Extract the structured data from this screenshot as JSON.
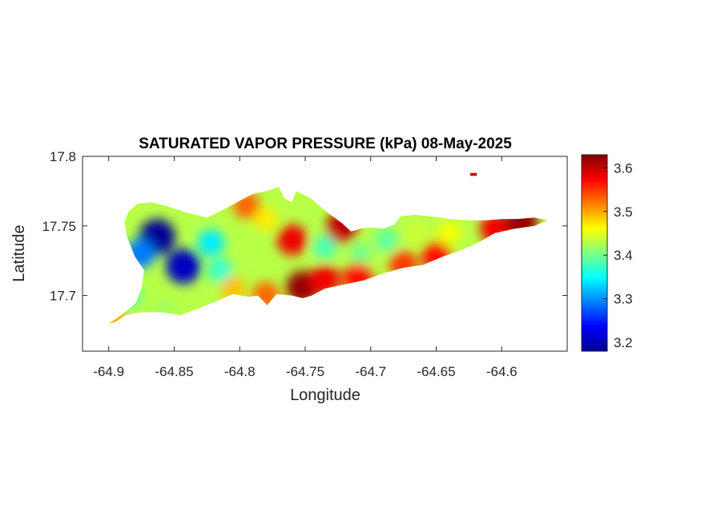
{
  "chart_data": {
    "type": "heatmap",
    "title": "SATURATED VAPOR PRESSURE (kPa) 08-May-2025",
    "xlabel": "Longitude",
    "ylabel": "Latitude",
    "xlim": [
      -64.92,
      -64.55
    ],
    "ylim": [
      17.66,
      17.8
    ],
    "x_ticks": [
      -64.9,
      -64.85,
      -64.8,
      -64.75,
      -64.7,
      -64.65,
      -64.6
    ],
    "x_tick_labels": [
      "-64.9",
      "-64.85",
      "-64.8",
      "-64.75",
      "-64.7",
      "-64.65",
      "-64.6"
    ],
    "y_ticks": [
      17.7,
      17.75,
      17.8
    ],
    "y_tick_labels": [
      "17.7",
      "17.75",
      "17.8"
    ],
    "colorbar": {
      "colormap": "jet",
      "range": [
        3.18,
        3.63
      ],
      "ticks": [
        3.2,
        3.3,
        3.4,
        3.5,
        3.6
      ],
      "tick_labels": [
        "3.2",
        "3.3",
        "3.4",
        "3.5",
        "3.6"
      ]
    },
    "island_outline": [
      [
        -64.9,
        17.68
      ],
      [
        -64.893,
        17.684
      ],
      [
        -64.885,
        17.69
      ],
      [
        -64.879,
        17.695
      ],
      [
        -64.875,
        17.705
      ],
      [
        -64.873,
        17.718
      ],
      [
        -64.88,
        17.728
      ],
      [
        -64.886,
        17.742
      ],
      [
        -64.888,
        17.753
      ],
      [
        -64.885,
        17.76
      ],
      [
        -64.878,
        17.766
      ],
      [
        -64.867,
        17.767
      ],
      [
        -64.855,
        17.764
      ],
      [
        -64.842,
        17.76
      ],
      [
        -64.825,
        17.756
      ],
      [
        -64.812,
        17.762
      ],
      [
        -64.8,
        17.768
      ],
      [
        -64.79,
        17.773
      ],
      [
        -64.78,
        17.775
      ],
      [
        -64.77,
        17.778
      ],
      [
        -64.766,
        17.77
      ],
      [
        -64.76,
        17.767
      ],
      [
        -64.757,
        17.775
      ],
      [
        -64.752,
        17.773
      ],
      [
        -64.746,
        17.77
      ],
      [
        -64.74,
        17.765
      ],
      [
        -64.732,
        17.759
      ],
      [
        -64.722,
        17.752
      ],
      [
        -64.715,
        17.746
      ],
      [
        -64.708,
        17.748
      ],
      [
        -64.7,
        17.749
      ],
      [
        -64.69,
        17.748
      ],
      [
        -64.682,
        17.751
      ],
      [
        -64.677,
        17.757
      ],
      [
        -64.666,
        17.758
      ],
      [
        -64.655,
        17.757
      ],
      [
        -64.64,
        17.755
      ],
      [
        -64.625,
        17.754
      ],
      [
        -64.612,
        17.754
      ],
      [
        -64.6,
        17.755
      ],
      [
        -64.588,
        17.755
      ],
      [
        -64.575,
        17.756
      ],
      [
        -64.565,
        17.754
      ],
      [
        -64.575,
        17.75
      ],
      [
        -64.59,
        17.748
      ],
      [
        -64.605,
        17.745
      ],
      [
        -64.618,
        17.738
      ],
      [
        -64.63,
        17.733
      ],
      [
        -64.645,
        17.728
      ],
      [
        -64.66,
        17.722
      ],
      [
        -64.675,
        17.72
      ],
      [
        -64.69,
        17.716
      ],
      [
        -64.705,
        17.711
      ],
      [
        -64.72,
        17.708
      ],
      [
        -64.735,
        17.705
      ],
      [
        -64.745,
        17.7
      ],
      [
        -64.752,
        17.698
      ],
      [
        -64.76,
        17.7
      ],
      [
        -64.772,
        17.701
      ],
      [
        -64.779,
        17.693
      ],
      [
        -64.786,
        17.7
      ],
      [
        -64.793,
        17.699
      ],
      [
        -64.805,
        17.701
      ],
      [
        -64.815,
        17.697
      ],
      [
        -64.828,
        17.692
      ],
      [
        -64.845,
        17.686
      ],
      [
        -64.86,
        17.688
      ],
      [
        -64.875,
        17.688
      ],
      [
        -64.887,
        17.686
      ],
      [
        -64.895,
        17.681
      ]
    ],
    "islet": [
      [
        -64.624,
        17.788
      ],
      [
        -64.619,
        17.788
      ],
      [
        -64.619,
        17.786
      ],
      [
        -64.624,
        17.786
      ]
    ],
    "field_centers": [
      {
        "lon": -64.863,
        "lat": 17.742,
        "value": 3.19
      },
      {
        "lon": -64.843,
        "lat": 17.721,
        "value": 3.21
      },
      {
        "lon": -64.876,
        "lat": 17.73,
        "value": 3.29
      },
      {
        "lon": -64.822,
        "lat": 17.738,
        "value": 3.34
      },
      {
        "lon": -64.815,
        "lat": 17.718,
        "value": 3.37
      },
      {
        "lon": -64.885,
        "lat": 17.7,
        "value": 3.38
      },
      {
        "lon": -64.735,
        "lat": 17.735,
        "value": 3.38
      },
      {
        "lon": -64.708,
        "lat": 17.73,
        "value": 3.4
      },
      {
        "lon": -64.688,
        "lat": 17.74,
        "value": 3.39
      },
      {
        "lon": -64.665,
        "lat": 17.745,
        "value": 3.44
      },
      {
        "lon": -64.64,
        "lat": 17.745,
        "value": 3.46
      },
      {
        "lon": -64.78,
        "lat": 17.755,
        "value": 3.47
      },
      {
        "lon": -64.795,
        "lat": 17.765,
        "value": 3.53
      },
      {
        "lon": -64.76,
        "lat": 17.74,
        "value": 3.58
      },
      {
        "lon": -64.722,
        "lat": 17.749,
        "value": 3.6
      },
      {
        "lon": -64.752,
        "lat": 17.706,
        "value": 3.62
      },
      {
        "lon": -64.735,
        "lat": 17.711,
        "value": 3.58
      },
      {
        "lon": -64.71,
        "lat": 17.713,
        "value": 3.57
      },
      {
        "lon": -64.78,
        "lat": 17.7,
        "value": 3.53
      },
      {
        "lon": -64.675,
        "lat": 17.722,
        "value": 3.55
      },
      {
        "lon": -64.65,
        "lat": 17.728,
        "value": 3.57
      },
      {
        "lon": -64.605,
        "lat": 17.748,
        "value": 3.58
      },
      {
        "lon": -64.585,
        "lat": 17.753,
        "value": 3.62
      },
      {
        "lon": -64.805,
        "lat": 17.705,
        "value": 3.49
      },
      {
        "lon": -64.895,
        "lat": 17.682,
        "value": 3.5
      },
      {
        "lon": -64.858,
        "lat": 17.689,
        "value": 3.42
      },
      {
        "lon": -64.62,
        "lat": 17.787,
        "value": 3.6
      }
    ]
  }
}
